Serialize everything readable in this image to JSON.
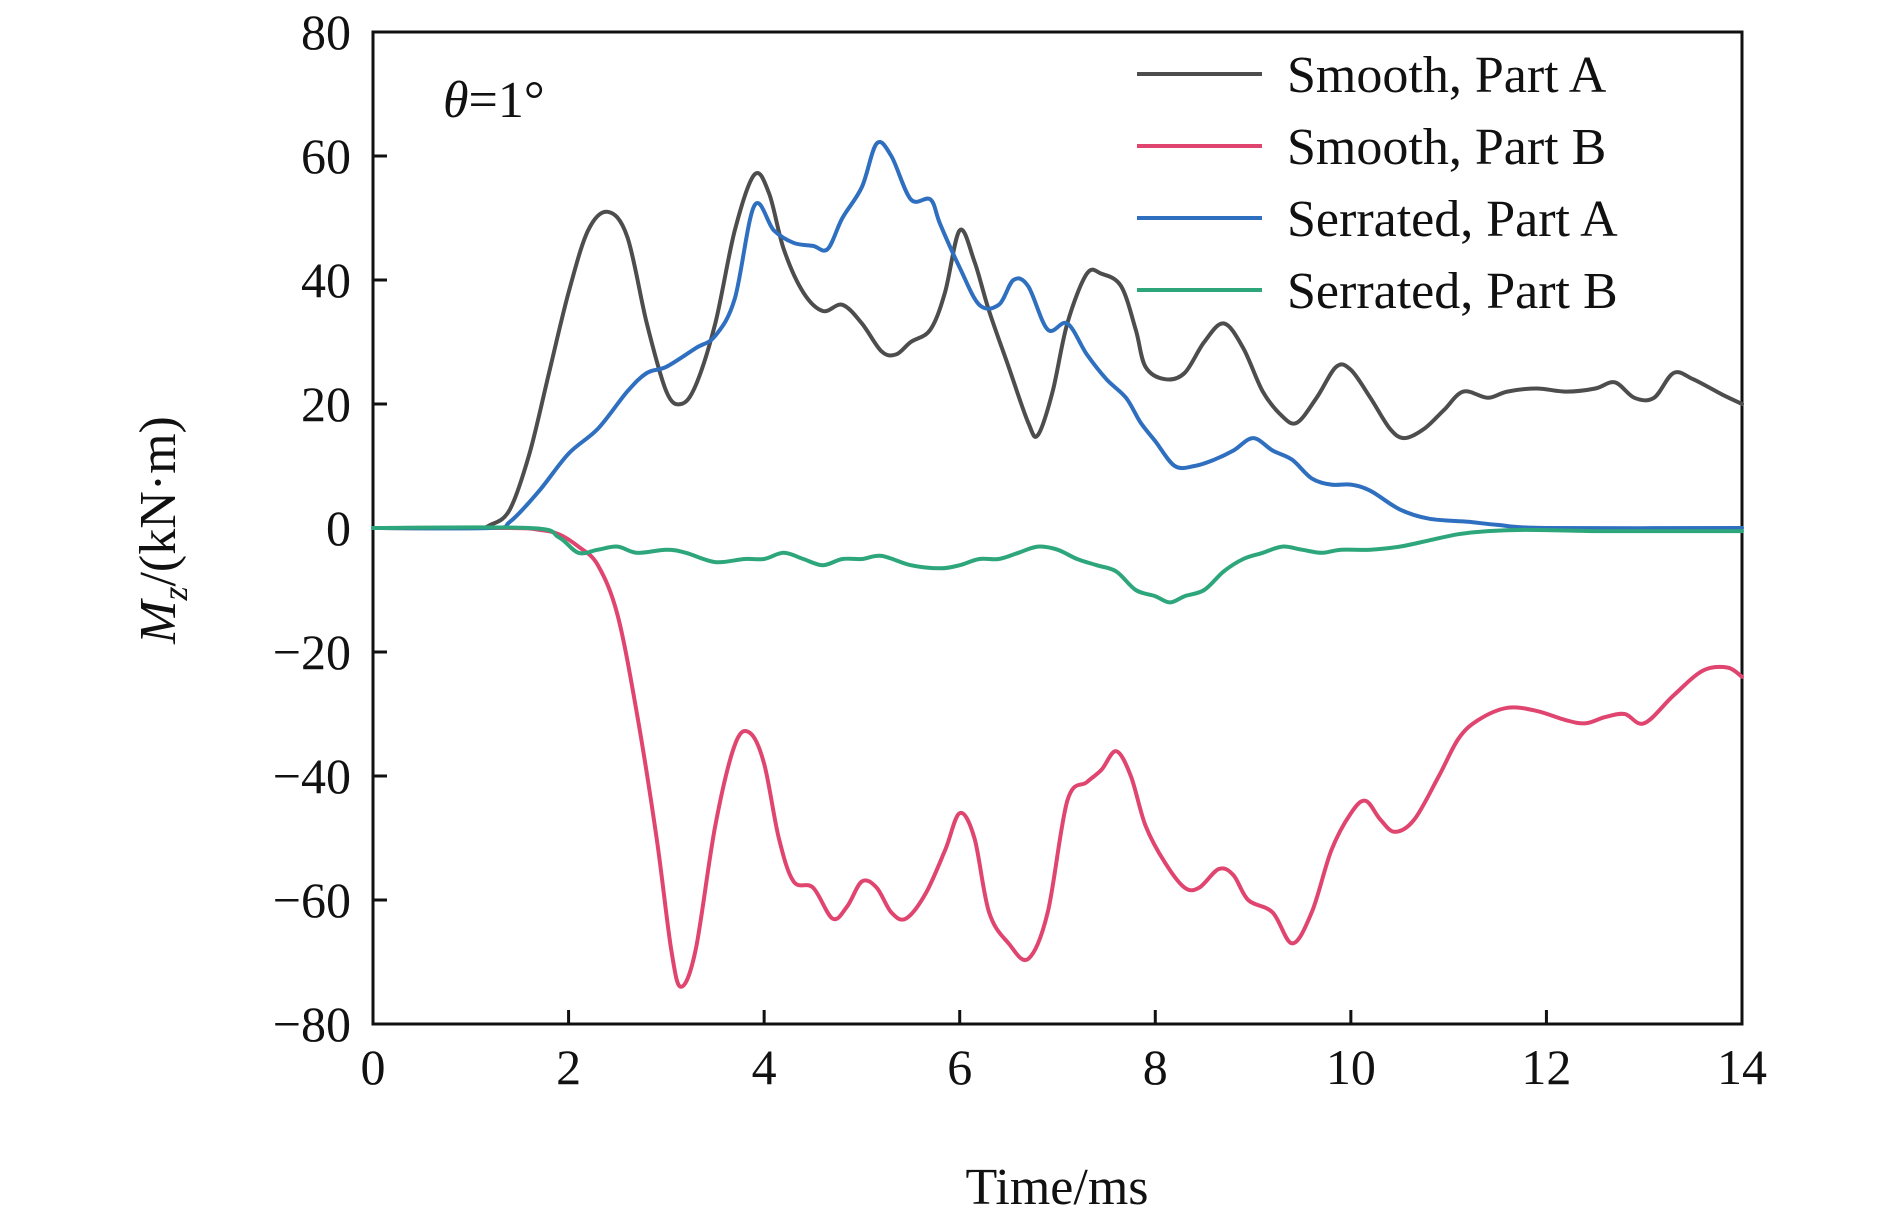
{
  "chart_data": {
    "type": "line",
    "xlabel": "Time/ms",
    "ylabel_main": "M",
    "ylabel_sub": "z",
    "ylabel_rest": "/(kN·m)",
    "annotation": {
      "symbol": "θ",
      "rest": "=1°"
    },
    "xlim": [
      0,
      14
    ],
    "ylim": [
      -80,
      80
    ],
    "x_ticks": [
      0,
      2,
      4,
      6,
      8,
      10,
      12,
      14
    ],
    "x_tick_labels": [
      "0",
      "2",
      "4",
      "6",
      "8",
      "10",
      "12",
      "14"
    ],
    "y_ticks": [
      80,
      60,
      40,
      20,
      0,
      -20,
      -40,
      -60,
      -80
    ],
    "y_tick_labels": [
      "80",
      "60",
      "40",
      "20",
      "0",
      "−20",
      "−40",
      "−60",
      "−80"
    ],
    "grid": false,
    "legend_position": "top-right",
    "series": [
      {
        "name": "Smooth, Part A",
        "color": "#4d4d4d",
        "points": [
          [
            0,
            0
          ],
          [
            1.0,
            0
          ],
          [
            1.2,
            0.5
          ],
          [
            1.4,
            3
          ],
          [
            1.6,
            12
          ],
          [
            1.8,
            25
          ],
          [
            2.0,
            38
          ],
          [
            2.2,
            48
          ],
          [
            2.4,
            51
          ],
          [
            2.6,
            47
          ],
          [
            2.8,
            33
          ],
          [
            3.0,
            22
          ],
          [
            3.15,
            20
          ],
          [
            3.3,
            23
          ],
          [
            3.5,
            33
          ],
          [
            3.7,
            48
          ],
          [
            3.9,
            57
          ],
          [
            4.05,
            54
          ],
          [
            4.2,
            45
          ],
          [
            4.4,
            38
          ],
          [
            4.6,
            35
          ],
          [
            4.8,
            36
          ],
          [
            5.0,
            33
          ],
          [
            5.2,
            28.5
          ],
          [
            5.35,
            28
          ],
          [
            5.5,
            30
          ],
          [
            5.7,
            32
          ],
          [
            5.85,
            38
          ],
          [
            6.0,
            48
          ],
          [
            6.15,
            43
          ],
          [
            6.3,
            35
          ],
          [
            6.5,
            26
          ],
          [
            6.7,
            17
          ],
          [
            6.8,
            15
          ],
          [
            6.95,
            22
          ],
          [
            7.1,
            33
          ],
          [
            7.3,
            41
          ],
          [
            7.45,
            41
          ],
          [
            7.65,
            39
          ],
          [
            7.8,
            32
          ],
          [
            7.9,
            26
          ],
          [
            8.1,
            24
          ],
          [
            8.3,
            25
          ],
          [
            8.5,
            30
          ],
          [
            8.7,
            33
          ],
          [
            8.9,
            29
          ],
          [
            9.1,
            22
          ],
          [
            9.3,
            18
          ],
          [
            9.45,
            17
          ],
          [
            9.65,
            21
          ],
          [
            9.85,
            26
          ],
          [
            10.0,
            25.5
          ],
          [
            10.2,
            21
          ],
          [
            10.4,
            16
          ],
          [
            10.55,
            14.5
          ],
          [
            10.75,
            16
          ],
          [
            10.95,
            19
          ],
          [
            11.15,
            22
          ],
          [
            11.4,
            21
          ],
          [
            11.6,
            22
          ],
          [
            11.9,
            22.5
          ],
          [
            12.2,
            22
          ],
          [
            12.5,
            22.5
          ],
          [
            12.7,
            23.5
          ],
          [
            12.9,
            21
          ],
          [
            13.1,
            21
          ],
          [
            13.3,
            25
          ],
          [
            13.5,
            24
          ],
          [
            13.8,
            21.5
          ],
          [
            14.0,
            20
          ]
        ]
      },
      {
        "name": "Smooth, Part B",
        "color": "#e0456f",
        "points": [
          [
            0,
            0
          ],
          [
            1.4,
            0
          ],
          [
            1.7,
            -0.3
          ],
          [
            1.9,
            -1
          ],
          [
            2.1,
            -3
          ],
          [
            2.3,
            -6
          ],
          [
            2.5,
            -14
          ],
          [
            2.7,
            -30
          ],
          [
            2.9,
            -50
          ],
          [
            3.05,
            -68
          ],
          [
            3.15,
            -74
          ],
          [
            3.3,
            -68
          ],
          [
            3.5,
            -48
          ],
          [
            3.7,
            -35
          ],
          [
            3.85,
            -33
          ],
          [
            4.0,
            -38
          ],
          [
            4.15,
            -50
          ],
          [
            4.3,
            -57
          ],
          [
            4.5,
            -58
          ],
          [
            4.7,
            -63
          ],
          [
            4.85,
            -61
          ],
          [
            5.0,
            -57
          ],
          [
            5.15,
            -58
          ],
          [
            5.3,
            -62
          ],
          [
            5.45,
            -63
          ],
          [
            5.65,
            -59
          ],
          [
            5.85,
            -52
          ],
          [
            6.0,
            -46
          ],
          [
            6.15,
            -50
          ],
          [
            6.3,
            -62
          ],
          [
            6.5,
            -67
          ],
          [
            6.7,
            -69.5
          ],
          [
            6.9,
            -62
          ],
          [
            7.1,
            -44
          ],
          [
            7.3,
            -41
          ],
          [
            7.45,
            -39
          ],
          [
            7.6,
            -36
          ],
          [
            7.75,
            -40
          ],
          [
            7.9,
            -48
          ],
          [
            8.1,
            -54
          ],
          [
            8.3,
            -58
          ],
          [
            8.45,
            -58
          ],
          [
            8.65,
            -55
          ],
          [
            8.8,
            -56
          ],
          [
            8.95,
            -60
          ],
          [
            9.2,
            -62
          ],
          [
            9.4,
            -67
          ],
          [
            9.6,
            -62
          ],
          [
            9.8,
            -52
          ],
          [
            10.0,
            -46
          ],
          [
            10.15,
            -44
          ],
          [
            10.3,
            -47
          ],
          [
            10.45,
            -49
          ],
          [
            10.65,
            -47
          ],
          [
            10.9,
            -40
          ],
          [
            11.1,
            -34
          ],
          [
            11.3,
            -31
          ],
          [
            11.6,
            -29
          ],
          [
            11.9,
            -29.5
          ],
          [
            12.2,
            -31
          ],
          [
            12.4,
            -31.5
          ],
          [
            12.6,
            -30.5
          ],
          [
            12.8,
            -30
          ],
          [
            13.0,
            -31.5
          ],
          [
            13.3,
            -27
          ],
          [
            13.6,
            -23
          ],
          [
            13.85,
            -22.5
          ],
          [
            14.0,
            -24
          ]
        ]
      },
      {
        "name": "Serrated, Part A",
        "color": "#2f6fc0",
        "points": [
          [
            0,
            0
          ],
          [
            1.2,
            0
          ],
          [
            1.4,
            1
          ],
          [
            1.7,
            6
          ],
          [
            2.0,
            12
          ],
          [
            2.3,
            16
          ],
          [
            2.6,
            22
          ],
          [
            2.8,
            25
          ],
          [
            3.0,
            26
          ],
          [
            3.3,
            29
          ],
          [
            3.5,
            31
          ],
          [
            3.7,
            37
          ],
          [
            3.9,
            52
          ],
          [
            4.1,
            48
          ],
          [
            4.3,
            46
          ],
          [
            4.5,
            45.5
          ],
          [
            4.65,
            45
          ],
          [
            4.8,
            50
          ],
          [
            5.0,
            55
          ],
          [
            5.15,
            62
          ],
          [
            5.3,
            60
          ],
          [
            5.5,
            53
          ],
          [
            5.7,
            53
          ],
          [
            5.8,
            49
          ],
          [
            6.0,
            42
          ],
          [
            6.2,
            36
          ],
          [
            6.4,
            36
          ],
          [
            6.55,
            40
          ],
          [
            6.7,
            39
          ],
          [
            6.9,
            32
          ],
          [
            7.1,
            33
          ],
          [
            7.3,
            28
          ],
          [
            7.5,
            24
          ],
          [
            7.7,
            21
          ],
          [
            7.85,
            17
          ],
          [
            8.0,
            14
          ],
          [
            8.2,
            10
          ],
          [
            8.4,
            10
          ],
          [
            8.6,
            11
          ],
          [
            8.8,
            12.5
          ],
          [
            9.0,
            14.5
          ],
          [
            9.2,
            12.5
          ],
          [
            9.4,
            11
          ],
          [
            9.6,
            8
          ],
          [
            9.8,
            7
          ],
          [
            10.0,
            7
          ],
          [
            10.2,
            6
          ],
          [
            10.5,
            3
          ],
          [
            10.8,
            1.5
          ],
          [
            11.2,
            1
          ],
          [
            11.5,
            0.5
          ],
          [
            12.0,
            0
          ],
          [
            14.0,
            0
          ]
        ]
      },
      {
        "name": "Serrated, Part B",
        "color": "#2ea67c",
        "points": [
          [
            0,
            0
          ],
          [
            1.6,
            0
          ],
          [
            1.9,
            -1.5
          ],
          [
            2.1,
            -4
          ],
          [
            2.3,
            -3.5
          ],
          [
            2.5,
            -3
          ],
          [
            2.7,
            -4
          ],
          [
            3.0,
            -3.5
          ],
          [
            3.2,
            -4
          ],
          [
            3.5,
            -5.5
          ],
          [
            3.8,
            -5
          ],
          [
            4.0,
            -5
          ],
          [
            4.2,
            -4
          ],
          [
            4.4,
            -5
          ],
          [
            4.6,
            -6
          ],
          [
            4.8,
            -5
          ],
          [
            5.0,
            -5
          ],
          [
            5.2,
            -4.5
          ],
          [
            5.5,
            -6
          ],
          [
            5.8,
            -6.5
          ],
          [
            6.0,
            -6
          ],
          [
            6.2,
            -5
          ],
          [
            6.4,
            -5
          ],
          [
            6.6,
            -4
          ],
          [
            6.8,
            -3
          ],
          [
            7.0,
            -3.5
          ],
          [
            7.2,
            -5
          ],
          [
            7.4,
            -6
          ],
          [
            7.6,
            -7
          ],
          [
            7.8,
            -10
          ],
          [
            8.0,
            -11
          ],
          [
            8.15,
            -12
          ],
          [
            8.3,
            -11
          ],
          [
            8.5,
            -10
          ],
          [
            8.7,
            -7
          ],
          [
            8.9,
            -5
          ],
          [
            9.1,
            -4
          ],
          [
            9.3,
            -3
          ],
          [
            9.5,
            -3.5
          ],
          [
            9.7,
            -4
          ],
          [
            9.9,
            -3.5
          ],
          [
            10.2,
            -3.5
          ],
          [
            10.5,
            -3
          ],
          [
            10.8,
            -2
          ],
          [
            11.1,
            -1
          ],
          [
            11.4,
            -0.5
          ],
          [
            11.8,
            -0.3
          ],
          [
            12.5,
            -0.5
          ],
          [
            13.0,
            -0.5
          ],
          [
            14.0,
            -0.5
          ]
        ]
      }
    ]
  }
}
